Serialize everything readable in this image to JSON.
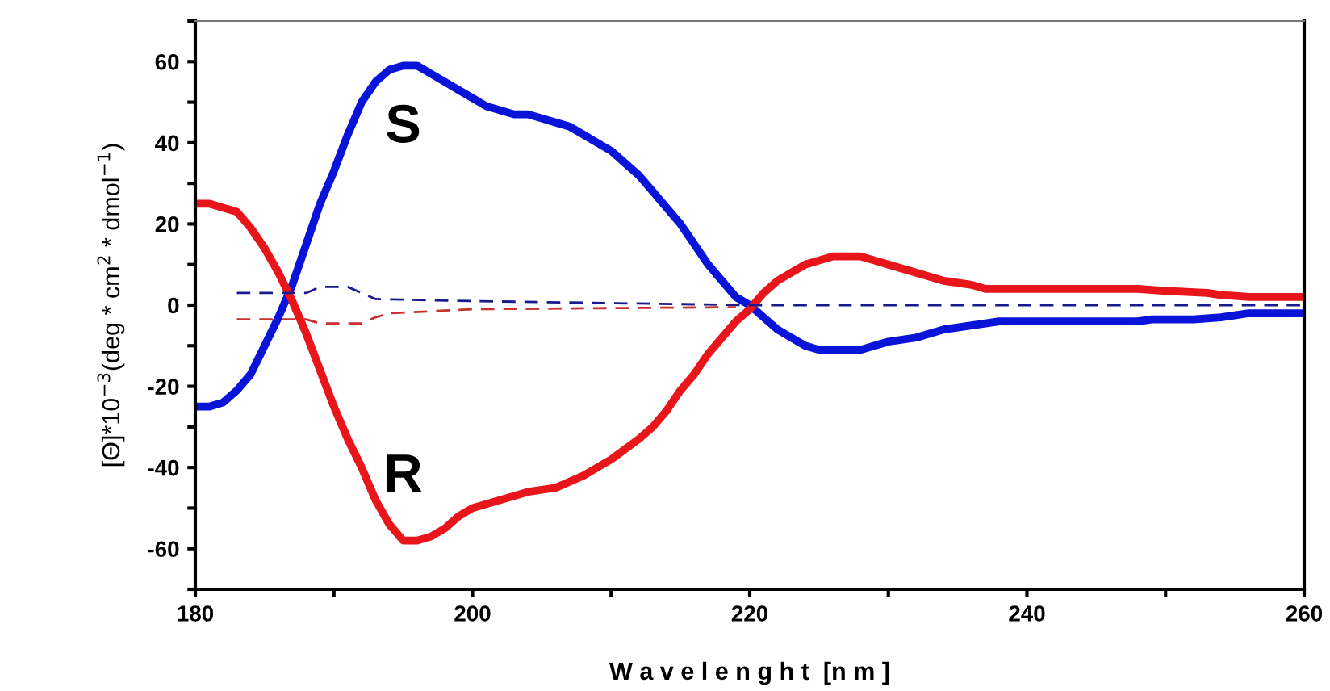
{
  "chart_data": {
    "type": "line",
    "xlabel": "W a v e l e n g h t  [n m ]",
    "ylabel": "[Θ]*10$^{−3}$(deg * cm$^{2}$ * dmol$^{−1}$)",
    "xlim": [
      180,
      260
    ],
    "xticks": [
      180,
      {
        "value": 190,
        "label": null
      },
      200,
      {
        "value": 210,
        "label": null
      },
      220,
      {
        "value": 230,
        "label": null
      },
      240,
      {
        "value": 250,
        "label": null
      },
      260
    ],
    "ylim": [
      -70,
      70
    ],
    "yticks": [
      {
        "value": -70,
        "label": null
      },
      -60,
      {
        "value": -50,
        "label": null
      },
      -40,
      {
        "value": -30,
        "label": null
      },
      -20,
      {
        "value": -10,
        "label": null
      },
      0,
      {
        "value": 10,
        "label": null
      },
      20,
      {
        "value": 30,
        "label": null
      },
      40,
      {
        "value": 50,
        "label": null
      },
      60,
      {
        "value": 70,
        "label": null
      }
    ],
    "grid": false,
    "legend": false,
    "series": [
      {
        "name": "S",
        "color": "#0a14d8",
        "line_style": "solid",
        "x": [
          180,
          181,
          182,
          183,
          184,
          185,
          186,
          187,
          188,
          189,
          190,
          191,
          192,
          193,
          194,
          195,
          196,
          197,
          198,
          199,
          200,
          201,
          202,
          203,
          204,
          205,
          206,
          207,
          208,
          209,
          210,
          211,
          212,
          213,
          214,
          215,
          216,
          217,
          218,
          219,
          220,
          221,
          222,
          223,
          224,
          225,
          226,
          227,
          228,
          229,
          230,
          232,
          234,
          236,
          238,
          240,
          245,
          248,
          249,
          252,
          254,
          256,
          260
        ],
        "values": [
          -25,
          -25,
          -24,
          -21,
          -17,
          -10,
          -3,
          5,
          15,
          25,
          33,
          42,
          50,
          55,
          58,
          59,
          59,
          57,
          55,
          53,
          51,
          49,
          48,
          47,
          47,
          46,
          45,
          44,
          42,
          40,
          38,
          35,
          32,
          28,
          24,
          20,
          15,
          10,
          6,
          2,
          0,
          -3,
          -6,
          -8,
          -10,
          -11,
          -11,
          -11,
          -11,
          -10,
          -9,
          -8,
          -6,
          -5,
          -4,
          -4,
          -4,
          -4,
          -3.5,
          -3.5,
          -3,
          -2,
          -2
        ]
      },
      {
        "name": "R",
        "color": "#e8151b",
        "line_style": "solid",
        "x": [
          180,
          181,
          182,
          183,
          184,
          185,
          186,
          187,
          188,
          189,
          190,
          191,
          192,
          193,
          194,
          195,
          196,
          197,
          198,
          199,
          200,
          202,
          204,
          206,
          208,
          210,
          212,
          213,
          214,
          215,
          216,
          217,
          218,
          219,
          220,
          221,
          222,
          223,
          224,
          225,
          226,
          228,
          229,
          230,
          232,
          234,
          236,
          237,
          240,
          248,
          250,
          253,
          254,
          256,
          260
        ],
        "values": [
          25,
          25,
          24,
          23,
          19,
          14,
          8,
          1,
          -7,
          -16,
          -25,
          -33,
          -40,
          -48,
          -54,
          -58,
          -58,
          -57,
          -55,
          -52,
          -50,
          -48,
          -46,
          -45,
          -42,
          -38,
          -33,
          -30,
          -26,
          -21,
          -17,
          -12,
          -8,
          -4,
          -1,
          3,
          6,
          8,
          10,
          11,
          12,
          12,
          11,
          10,
          8,
          6,
          5,
          4,
          4,
          4,
          3.5,
          3,
          2.5,
          2,
          2
        ]
      },
      {
        "color": "#1a1a8c",
        "line_style": "dashed",
        "x": [
          183,
          188,
          189,
          191,
          192,
          193,
          200,
          220,
          260
        ],
        "values": [
          3,
          3,
          4.5,
          4.5,
          3,
          1.5,
          1,
          0,
          0
        ]
      },
      {
        "color": "#c83030",
        "line_style": "dashed",
        "x": [
          183,
          188,
          189,
          192,
          193,
          194,
          200,
          219
        ],
        "values": [
          -3.5,
          -3.5,
          -4.5,
          -4.5,
          -3,
          -2,
          -1,
          -0.5
        ]
      }
    ]
  }
}
